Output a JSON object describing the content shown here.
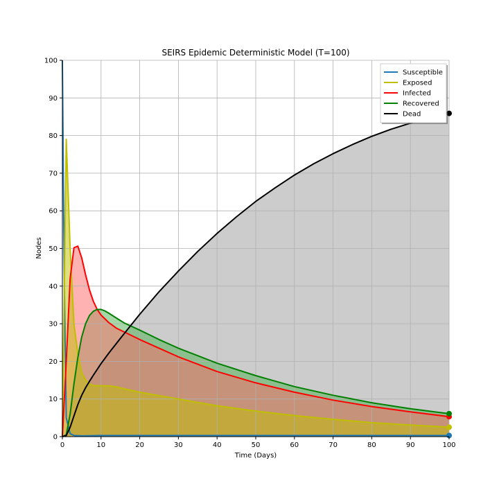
{
  "chart_data": {
    "type": "area",
    "title": "SEIRS Epidemic Deterministic Model (T=100)",
    "xlabel": "Time (Days)",
    "ylabel": "Nodes",
    "xlim": [
      0,
      100
    ],
    "ylim": [
      0,
      100
    ],
    "xticks": [
      0,
      10,
      20,
      30,
      40,
      50,
      60,
      70,
      80,
      90,
      100
    ],
    "yticks": [
      0,
      10,
      20,
      30,
      40,
      50,
      60,
      70,
      80,
      90,
      100
    ],
    "grid": true,
    "legend_position": "top-right",
    "series": [
      {
        "name": "Susceptible",
        "color": "#1f77b4",
        "fill": false,
        "points": [
          [
            0,
            100
          ],
          [
            0.5,
            40
          ],
          [
            1,
            5
          ],
          [
            2,
            0.8
          ],
          [
            3,
            0.3
          ],
          [
            5,
            0.2
          ],
          [
            10,
            0.3
          ],
          [
            20,
            0.3
          ],
          [
            40,
            0.3
          ],
          [
            60,
            0.3
          ],
          [
            80,
            0.3
          ],
          [
            100,
            0.3
          ]
        ]
      },
      {
        "name": "Exposed",
        "color": "#bfbf00",
        "fill": true,
        "fill_color": "#bfbf00",
        "points": [
          [
            0,
            0
          ],
          [
            1,
            79
          ],
          [
            2,
            50
          ],
          [
            3,
            30
          ],
          [
            4,
            22
          ],
          [
            5,
            17
          ],
          [
            6,
            15
          ],
          [
            7,
            14
          ],
          [
            8,
            13.6
          ],
          [
            10,
            13.5
          ],
          [
            12,
            13.5
          ],
          [
            14,
            13.2
          ],
          [
            16,
            12.7
          ],
          [
            20,
            11.8
          ],
          [
            25,
            10.9
          ],
          [
            30,
            10
          ],
          [
            40,
            8.2
          ],
          [
            50,
            6.8
          ],
          [
            60,
            5.6
          ],
          [
            70,
            4.6
          ],
          [
            80,
            3.7
          ],
          [
            90,
            3.1
          ],
          [
            100,
            2.5
          ]
        ]
      },
      {
        "name": "Infected",
        "color": "#ff0000",
        "fill": true,
        "fill_color": "#ff6666",
        "points": [
          [
            0,
            0
          ],
          [
            1,
            20
          ],
          [
            2,
            42
          ],
          [
            3,
            50.2
          ],
          [
            4,
            50.6
          ],
          [
            5,
            47.5
          ],
          [
            6,
            43
          ],
          [
            7,
            39
          ],
          [
            8,
            36
          ],
          [
            9,
            33.8
          ],
          [
            10,
            32.3
          ],
          [
            12,
            30.3
          ],
          [
            14,
            28.8
          ],
          [
            16,
            27.8
          ],
          [
            20,
            25.8
          ],
          [
            25,
            23.5
          ],
          [
            30,
            21.2
          ],
          [
            40,
            17.3
          ],
          [
            50,
            14.3
          ],
          [
            60,
            11.8
          ],
          [
            70,
            9.7
          ],
          [
            80,
            8
          ],
          [
            90,
            6.6
          ],
          [
            100,
            5.3
          ]
        ]
      },
      {
        "name": "Recovered",
        "color": "#008000",
        "fill": true,
        "fill_color": "#4caf50",
        "points": [
          [
            0,
            0
          ],
          [
            1,
            0.5
          ],
          [
            2,
            6
          ],
          [
            3,
            14
          ],
          [
            4,
            21
          ],
          [
            5,
            26.5
          ],
          [
            6,
            30
          ],
          [
            7,
            32.2
          ],
          [
            8,
            33.3
          ],
          [
            9,
            33.8
          ],
          [
            10,
            33.8
          ],
          [
            11,
            33.4
          ],
          [
            12,
            32.8
          ],
          [
            14,
            31.5
          ],
          [
            16,
            30.2
          ],
          [
            20,
            28.3
          ],
          [
            25,
            25.8
          ],
          [
            30,
            23.5
          ],
          [
            40,
            19.5
          ],
          [
            50,
            16.2
          ],
          [
            60,
            13.3
          ],
          [
            70,
            11
          ],
          [
            80,
            9
          ],
          [
            90,
            7.4
          ],
          [
            100,
            6.1
          ]
        ]
      },
      {
        "name": "Dead",
        "color": "#000000",
        "fill": true,
        "fill_color": "#999999",
        "points": [
          [
            0,
            0
          ],
          [
            1,
            0.3
          ],
          [
            2,
            2.5
          ],
          [
            3,
            5.5
          ],
          [
            4,
            8.5
          ],
          [
            5,
            11
          ],
          [
            6,
            13
          ],
          [
            7,
            14.7
          ],
          [
            8,
            16.3
          ],
          [
            10,
            19.4
          ],
          [
            12,
            22.2
          ],
          [
            15,
            26.1
          ],
          [
            20,
            32.5
          ],
          [
            25,
            38.5
          ],
          [
            30,
            44
          ],
          [
            35,
            49.2
          ],
          [
            40,
            54
          ],
          [
            45,
            58.4
          ],
          [
            50,
            62.5
          ],
          [
            55,
            66.1
          ],
          [
            60,
            69.5
          ],
          [
            65,
            72.5
          ],
          [
            70,
            75.2
          ],
          [
            75,
            77.6
          ],
          [
            80,
            79.8
          ],
          [
            85,
            81.7
          ],
          [
            90,
            83.3
          ],
          [
            95,
            84.7
          ],
          [
            100,
            85.9
          ]
        ]
      }
    ]
  }
}
